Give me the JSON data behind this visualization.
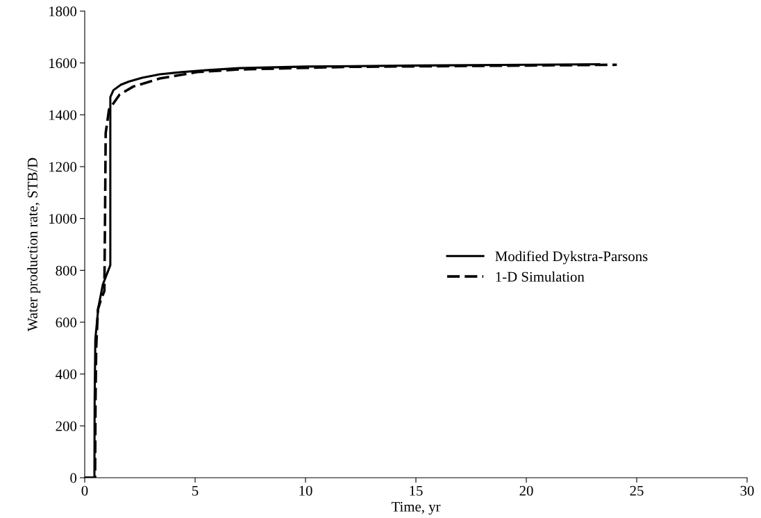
{
  "chart_data": {
    "type": "line",
    "xlabel": "Time, yr",
    "ylabel": "Water production rate, STB/D",
    "xlim": [
      0,
      30
    ],
    "xticks": [
      0,
      5,
      10,
      15,
      20,
      25,
      30
    ],
    "ylim": [
      0,
      1800
    ],
    "yticks": [
      0,
      200,
      400,
      600,
      800,
      1000,
      1200,
      1400,
      1600,
      1800
    ],
    "grid": false,
    "legend": "center right",
    "marker": "none",
    "series": [
      {
        "name": "Modified Dykstra-Parsons",
        "color": "#000000",
        "line_style": "solid",
        "x": [
          0,
          0.44,
          0.45,
          0.48,
          0.62,
          0.82,
          1.16,
          1.16,
          1.3,
          1.64,
          2.0,
          2.6,
          3.4,
          4.4,
          5.5,
          7,
          10,
          15,
          20,
          23.3
        ],
        "values": [
          0,
          0,
          300,
          534,
          658,
          745,
          820,
          1468,
          1495,
          1516,
          1528,
          1543,
          1556,
          1565,
          1572,
          1580,
          1586,
          1590,
          1593,
          1595
        ]
      },
      {
        "name": "1-D Simulation",
        "color": "#000000",
        "line_style": "dashed",
        "x": [
          0,
          0.47,
          0.49,
          0.52,
          0.6,
          0.75,
          0.89,
          0.92,
          0.95,
          1.1,
          1.58,
          2.2,
          3.4,
          5.1,
          7,
          12,
          20,
          24.1
        ],
        "values": [
          0,
          0,
          300,
          500,
          650,
          690,
          720,
          1000,
          1329,
          1420,
          1478,
          1509,
          1540,
          1565,
          1575,
          1585,
          1590,
          1593
        ]
      }
    ]
  }
}
